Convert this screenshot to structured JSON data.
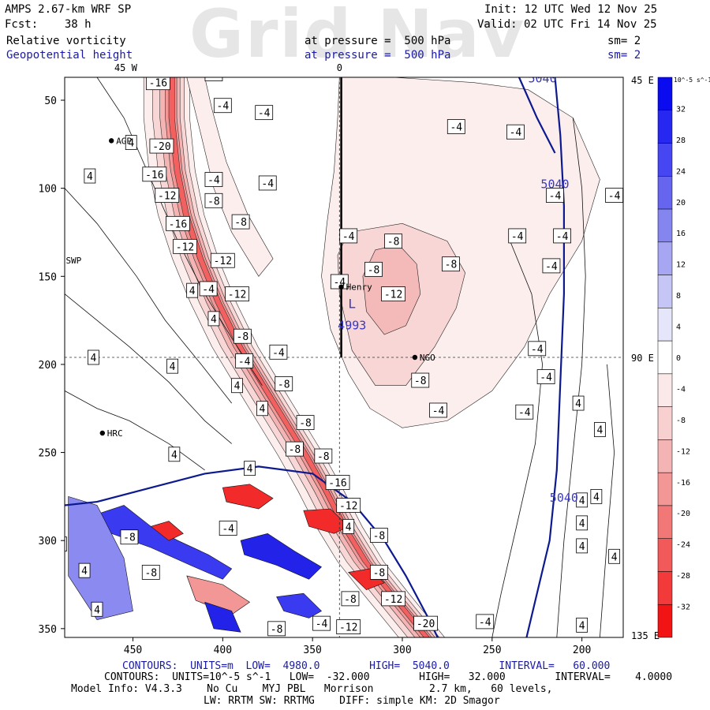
{
  "header": {
    "left_line1": "AMPS 2.67-km WRF SP",
    "left_line2": "Fcst:    38 h",
    "var1": "Relative vorticity",
    "var2": "Geopotential height",
    "init": "Init: 12 UTC Wed 12 Nov 25",
    "valid": "Valid: 02 UTC Fri 14 Nov 25",
    "pressure1": "at pressure =  500 hPa",
    "pressure2": "at pressure =  500 hPa",
    "sm1": "sm= 2",
    "sm2": "sm= 2",
    "watermark": "Grid Nav"
  },
  "map": {
    "top_labels": [
      "45 W",
      "0"
    ],
    "right_labels": [
      "45 E",
      "90 E",
      "135 E"
    ],
    "x_ticks": [
      450,
      400,
      350,
      300,
      250,
      200
    ],
    "y_ticks": [
      50,
      100,
      150,
      200,
      250,
      300,
      350
    ],
    "stations": [
      {
        "name": "AGP",
        "x": 462,
        "y": 73
      },
      {
        "name": "SWP",
        "x": 490,
        "y": 141
      },
      {
        "name": "Henry",
        "x": 334,
        "y": 156
      },
      {
        "name": "NGO",
        "x": 293,
        "y": 196
      },
      {
        "name": "HRC",
        "x": 467,
        "y": 239
      }
    ],
    "low_label": "L",
    "low_value": "4993",
    "height_labels": [
      "5040",
      "5040",
      "5040"
    ],
    "vort_labels": [
      {
        "t": "-16",
        "x": 436,
        "y": 40
      },
      {
        "t": "-8",
        "x": 405,
        "y": 35
      },
      {
        "t": "-4",
        "x": 400,
        "y": 53
      },
      {
        "t": "-20",
        "x": 434,
        "y": 76
      },
      {
        "t": "4",
        "x": 451,
        "y": 74
      },
      {
        "t": "-16",
        "x": 438,
        "y": 92
      },
      {
        "t": "4",
        "x": 474,
        "y": 93
      },
      {
        "t": "-4",
        "x": 405,
        "y": 95
      },
      {
        "t": "-12",
        "x": 431,
        "y": 104
      },
      {
        "t": "-8",
        "x": 405,
        "y": 107
      },
      {
        "t": "-16",
        "x": 425,
        "y": 120
      },
      {
        "t": "-12",
        "x": 421,
        "y": 133
      },
      {
        "t": "-12",
        "x": 400,
        "y": 141
      },
      {
        "t": "-8",
        "x": 390,
        "y": 119
      },
      {
        "t": "-4",
        "x": 375,
        "y": 97
      },
      {
        "t": "-4",
        "x": 377,
        "y": 57
      },
      {
        "t": "4",
        "x": 417,
        "y": 158
      },
      {
        "t": "-4",
        "x": 408,
        "y": 157
      },
      {
        "t": "-12",
        "x": 392,
        "y": 160
      },
      {
        "t": "4",
        "x": 405,
        "y": 174
      },
      {
        "t": "-8",
        "x": 389,
        "y": 184
      },
      {
        "t": "4",
        "x": 472,
        "y": 196
      },
      {
        "t": "4",
        "x": 428,
        "y": 201
      },
      {
        "t": "-4",
        "x": 388,
        "y": 198
      },
      {
        "t": "-4",
        "x": 369,
        "y": 193
      },
      {
        "t": "4",
        "x": 392,
        "y": 212
      },
      {
        "t": "-8",
        "x": 366,
        "y": 211
      },
      {
        "t": "4",
        "x": 378,
        "y": 225
      },
      {
        "t": "-8",
        "x": 354,
        "y": 233
      },
      {
        "t": "-8",
        "x": 360,
        "y": 248
      },
      {
        "t": "4",
        "x": 427,
        "y": 251
      },
      {
        "t": "-8",
        "x": 344,
        "y": 252
      },
      {
        "t": "4",
        "x": 385,
        "y": 259
      },
      {
        "t": "-16",
        "x": 336,
        "y": 267
      },
      {
        "t": "-12",
        "x": 330,
        "y": 280
      },
      {
        "t": "-4",
        "x": 397,
        "y": 293
      },
      {
        "t": "-8",
        "x": 452,
        "y": 298
      },
      {
        "t": "4",
        "x": 490,
        "y": 302
      },
      {
        "t": "-8",
        "x": 313,
        "y": 297
      },
      {
        "t": "4",
        "x": 330,
        "y": 292
      },
      {
        "t": "-8",
        "x": 440,
        "y": 318
      },
      {
        "t": "4",
        "x": 477,
        "y": 317
      },
      {
        "t": "-8",
        "x": 313,
        "y": 318
      },
      {
        "t": "4",
        "x": 470,
        "y": 339
      },
      {
        "t": "-8",
        "x": 329,
        "y": 333
      },
      {
        "t": "-12",
        "x": 305,
        "y": 333
      },
      {
        "t": "-4",
        "x": 345,
        "y": 347
      },
      {
        "t": "-12",
        "x": 330,
        "y": 349
      },
      {
        "t": "-8",
        "x": 370,
        "y": 350
      },
      {
        "t": "-20",
        "x": 287,
        "y": 347
      },
      {
        "t": "-4",
        "x": 254,
        "y": 346
      },
      {
        "t": "-4",
        "x": 306,
        "y": 33
      },
      {
        "t": "-4",
        "x": 270,
        "y": 65
      },
      {
        "t": "-4",
        "x": 237,
        "y": 68
      },
      {
        "t": "-4",
        "x": 330,
        "y": 127
      },
      {
        "t": "-8",
        "x": 305,
        "y": 130
      },
      {
        "t": "-8",
        "x": 273,
        "y": 143
      },
      {
        "t": "-8",
        "x": 316,
        "y": 146
      },
      {
        "t": "-12",
        "x": 305,
        "y": 160
      },
      {
        "t": "-4",
        "x": 335,
        "y": 153
      },
      {
        "t": "-4",
        "x": 182,
        "y": 104
      },
      {
        "t": "-4",
        "x": 236,
        "y": 127
      },
      {
        "t": "-4",
        "x": 211,
        "y": 127
      },
      {
        "t": "-4",
        "x": 217,
        "y": 144
      },
      {
        "t": "-4",
        "x": 225,
        "y": 191
      },
      {
        "t": "-8",
        "x": 290,
        "y": 209
      },
      {
        "t": "-4",
        "x": 220,
        "y": 207
      },
      {
        "t": "-4",
        "x": 280,
        "y": 226
      },
      {
        "t": "-4",
        "x": 232,
        "y": 227
      },
      {
        "t": "4",
        "x": 202,
        "y": 222
      },
      {
        "t": "4",
        "x": 190,
        "y": 237
      },
      {
        "t": "4",
        "x": 192,
        "y": 275
      },
      {
        "t": "4",
        "x": 200,
        "y": 277
      },
      {
        "t": "4",
        "x": 200,
        "y": 290
      },
      {
        "t": "4",
        "x": 200,
        "y": 303
      },
      {
        "t": "4",
        "x": 182,
        "y": 309
      },
      {
        "t": "4",
        "x": 200,
        "y": 348
      },
      {
        "t": "-4",
        "x": 215,
        "y": 104
      }
    ]
  },
  "colorbar": {
    "unit": "10^-5 s^-1",
    "ticks": [
      "32",
      "28",
      "24",
      "20",
      "16",
      "12",
      "8",
      "4",
      "0",
      "-4",
      "-8",
      "-12",
      "-16",
      "-20",
      "-24",
      "-28",
      "-32"
    ],
    "colors": [
      "#0b0bf0",
      "#2727f2",
      "#4646f2",
      "#6565f0",
      "#8585f0",
      "#a6a6f2",
      "#c6c6f6",
      "#e6e6fa",
      "#ffffff",
      "#fbe8e8",
      "#f8d0d0",
      "#f4b4b4",
      "#f29696",
      "#f27777",
      "#f25a5a",
      "#f23a3a",
      "#f21414"
    ]
  },
  "footer": {
    "line1": "CONTOURS:  UNITS=m  LOW=  4980.0        HIGH=  5040.0        INTERVAL=   60.000",
    "line2": "CONTOURS:  UNITS=10^-5 s^-1   LOW=  -32.000        HIGH=   32.000        INTERVAL=    4.0000",
    "line3": "Model Info: V4.3.3    No Cu    MYJ PBL   Morrison         2.7 km,   60 levels,",
    "line4": "LW: RRTM SW: RRTMG    DIFF: simple KM: 2D Smagor"
  }
}
